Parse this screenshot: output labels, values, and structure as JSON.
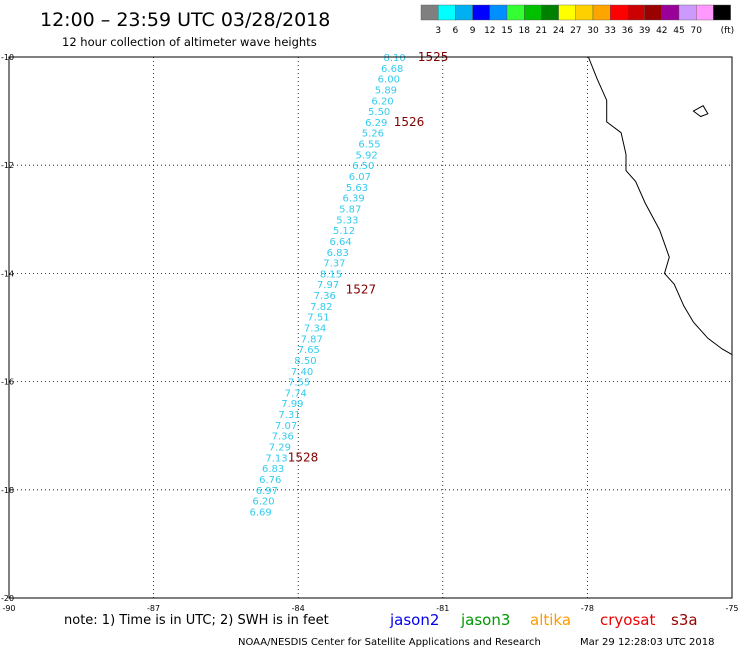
{
  "header": {
    "title": "12:00 – 23:59 UTC 03/28/2018",
    "subtitle": "12 hour collection of altimeter wave heights"
  },
  "colorbar": {
    "colors": [
      "#7f7f7f",
      "#00ffff",
      "#00b0f0",
      "#0000ff",
      "#008fff",
      "#33ff33",
      "#00c000",
      "#008000",
      "#ffff00",
      "#ffd000",
      "#ffa500",
      "#ff0000",
      "#cc0000",
      "#990000",
      "#990099",
      "#cc99ff",
      "#ff99ff",
      "#000000"
    ],
    "labels": [
      "3",
      "6",
      "9",
      "12",
      "15",
      "18",
      "21",
      "24",
      "27",
      "30",
      "33",
      "36",
      "39",
      "42",
      "45",
      "70"
    ],
    "unit": "(ft)"
  },
  "axes": {
    "lon_ticks": [
      -90,
      -87,
      -84,
      -81,
      -78,
      -75
    ],
    "lat_ticks": [
      -10,
      -12,
      -14,
      -16,
      -18,
      -20
    ]
  },
  "track": {
    "color": "#33ccee",
    "points": [
      {
        "lon": -82.0,
        "lat": -10.0,
        "v": "8.10"
      },
      {
        "lon": -82.05,
        "lat": -10.2,
        "v": "6.68"
      },
      {
        "lon": -82.12,
        "lat": -10.4,
        "v": "6.00"
      },
      {
        "lon": -82.18,
        "lat": -10.6,
        "v": "5.89"
      },
      {
        "lon": -82.25,
        "lat": -10.8,
        "v": "6.20"
      },
      {
        "lon": -82.32,
        "lat": -11.0,
        "v": "5.50"
      },
      {
        "lon": -82.38,
        "lat": -11.2,
        "v": "6.29"
      },
      {
        "lon": -82.45,
        "lat": -11.4,
        "v": "5.26"
      },
      {
        "lon": -82.52,
        "lat": -11.6,
        "v": "6.55"
      },
      {
        "lon": -82.58,
        "lat": -11.8,
        "v": "5.92"
      },
      {
        "lon": -82.65,
        "lat": -12.0,
        "v": "6.50"
      },
      {
        "lon": -82.72,
        "lat": -12.2,
        "v": "6.07"
      },
      {
        "lon": -82.78,
        "lat": -12.4,
        "v": "5.63"
      },
      {
        "lon": -82.85,
        "lat": -12.6,
        "v": "6.39"
      },
      {
        "lon": -82.92,
        "lat": -12.8,
        "v": "5.87"
      },
      {
        "lon": -82.98,
        "lat": -13.0,
        "v": "5.33"
      },
      {
        "lon": -83.05,
        "lat": -13.2,
        "v": "5.12"
      },
      {
        "lon": -83.12,
        "lat": -13.4,
        "v": "6.64"
      },
      {
        "lon": -83.18,
        "lat": -13.6,
        "v": "6.83"
      },
      {
        "lon": -83.25,
        "lat": -13.8,
        "v": "7.37"
      },
      {
        "lon": -83.32,
        "lat": -14.0,
        "v": "8.15"
      },
      {
        "lon": -83.38,
        "lat": -14.2,
        "v": "7.97"
      },
      {
        "lon": -83.45,
        "lat": -14.4,
        "v": "7.36"
      },
      {
        "lon": -83.52,
        "lat": -14.6,
        "v": "7.82"
      },
      {
        "lon": -83.58,
        "lat": -14.8,
        "v": "7.51"
      },
      {
        "lon": -83.65,
        "lat": -15.0,
        "v": "7.34"
      },
      {
        "lon": -83.72,
        "lat": -15.2,
        "v": "7.87"
      },
      {
        "lon": -83.78,
        "lat": -15.4,
        "v": "7.65"
      },
      {
        "lon": -83.85,
        "lat": -15.6,
        "v": "8.50"
      },
      {
        "lon": -83.92,
        "lat": -15.8,
        "v": "7.40"
      },
      {
        "lon": -83.98,
        "lat": -16.0,
        "v": "7.55"
      },
      {
        "lon": -84.05,
        "lat": -16.2,
        "v": "7.74"
      },
      {
        "lon": -84.12,
        "lat": -16.4,
        "v": "7.99"
      },
      {
        "lon": -84.18,
        "lat": -16.6,
        "v": "7.31"
      },
      {
        "lon": -84.25,
        "lat": -16.8,
        "v": "7.07"
      },
      {
        "lon": -84.32,
        "lat": -17.0,
        "v": "7.36"
      },
      {
        "lon": -84.38,
        "lat": -17.2,
        "v": "7.29"
      },
      {
        "lon": -84.45,
        "lat": -17.4,
        "v": "7.13"
      },
      {
        "lon": -84.52,
        "lat": -17.6,
        "v": "6.83"
      },
      {
        "lon": -84.58,
        "lat": -17.8,
        "v": "6.76"
      },
      {
        "lon": -84.65,
        "lat": -18.0,
        "v": "6.97"
      },
      {
        "lon": -84.72,
        "lat": -18.2,
        "v": "6.20"
      },
      {
        "lon": -84.78,
        "lat": -18.4,
        "v": "6.69"
      }
    ]
  },
  "time_labels": {
    "color": "#800000",
    "items": [
      {
        "text": "1525",
        "lon": -81.2,
        "lat": -10.0
      },
      {
        "text": "1526",
        "lon": -81.7,
        "lat": -11.2
      },
      {
        "text": "1527",
        "lon": -82.7,
        "lat": -14.3
      },
      {
        "text": "1528",
        "lon": -83.9,
        "lat": -17.4
      }
    ]
  },
  "coast": [
    [
      -77.98,
      -10.0
    ],
    [
      -77.8,
      -10.4
    ],
    [
      -77.6,
      -10.8
    ],
    [
      -77.6,
      -11.2
    ],
    [
      -77.3,
      -11.4
    ],
    [
      -77.2,
      -11.8
    ],
    [
      -77.2,
      -12.1
    ],
    [
      -77.0,
      -12.3
    ],
    [
      -76.8,
      -12.7
    ],
    [
      -76.5,
      -13.2
    ],
    [
      -76.3,
      -13.7
    ],
    [
      -76.4,
      -14.0
    ],
    [
      -76.2,
      -14.2
    ],
    [
      -76.0,
      -14.6
    ],
    [
      -75.8,
      -14.9
    ],
    [
      -75.5,
      -15.2
    ],
    [
      -75.2,
      -15.4
    ],
    [
      -75.0,
      -15.5
    ]
  ],
  "island": [
    [
      -75.8,
      -11.0
    ],
    [
      -75.6,
      -10.9
    ],
    [
      -75.5,
      -11.05
    ],
    [
      -75.65,
      -11.1
    ],
    [
      -75.8,
      -11.0
    ]
  ],
  "footer": {
    "note": "note:  1) Time is in UTC; 2) SWH is in feet",
    "satellites": [
      {
        "name": "jason2",
        "color": "#0000ee"
      },
      {
        "name": "jason3",
        "color": "#009900"
      },
      {
        "name": "altika",
        "color": "#ff9900"
      },
      {
        "name": "cryosat",
        "color": "#ee0000"
      },
      {
        "name": "s3a",
        "color": "#990000"
      }
    ],
    "credit": "NOAA/NESDIS Center for Satellite Applications and Research",
    "timestamp": "Mar 29 12:28:03 UTC 2018"
  }
}
